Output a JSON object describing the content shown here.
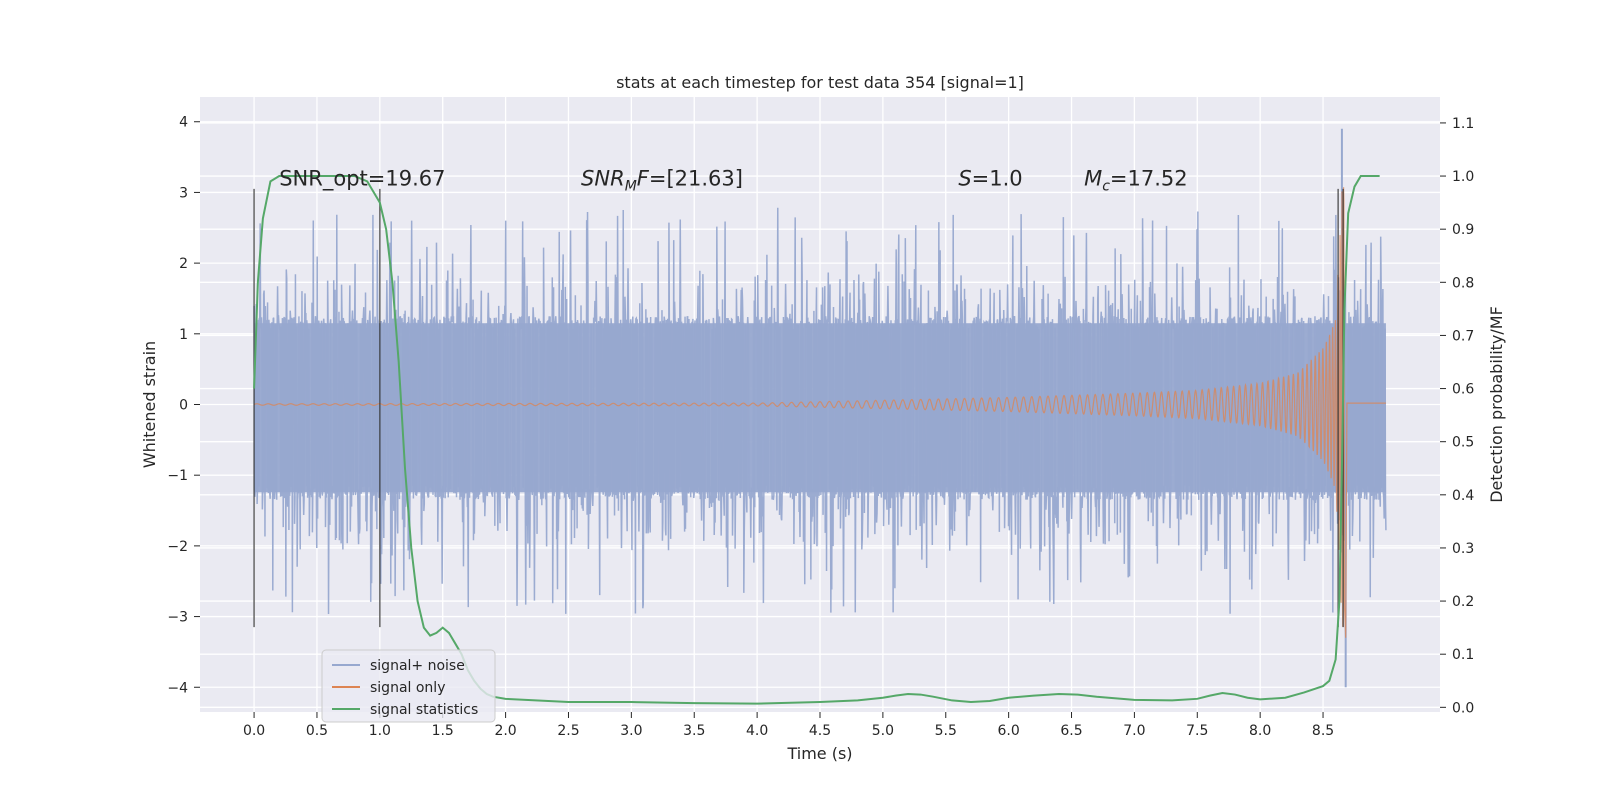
{
  "chart_data": {
    "type": "line",
    "title": "stats at each timestep for test data 354 [signal=1]",
    "xlabel": "Time (s)",
    "ylabel": "Whitened strain",
    "y2label": "Detection probability/MF",
    "xlim": [
      -0.43,
      9.43
    ],
    "ylim": [
      -4.35,
      4.35
    ],
    "y2lim": [
      -0.0088,
      1.1488
    ],
    "xticks": [
      0.0,
      0.5,
      1.0,
      1.5,
      2.0,
      2.5,
      3.0,
      3.5,
      4.0,
      4.5,
      5.0,
      5.5,
      6.0,
      6.5,
      7.0,
      7.5,
      8.0,
      8.5
    ],
    "xtick_labels": [
      "0.0",
      "0.5",
      "1.0",
      "1.5",
      "2.0",
      "2.5",
      "3.0",
      "3.5",
      "4.0",
      "4.5",
      "5.0",
      "5.5",
      "6.0",
      "6.5",
      "7.0",
      "7.5",
      "8.0",
      "8.5"
    ],
    "yticks": [
      -4,
      -3,
      -2,
      -1,
      0,
      1,
      2,
      3,
      4
    ],
    "ytick_labels": [
      "−4",
      "−3",
      "−2",
      "−1",
      "0",
      "1",
      "2",
      "3",
      "4"
    ],
    "y2ticks": [
      0.0,
      0.1,
      0.2,
      0.3,
      0.4,
      0.5,
      0.6,
      0.7,
      0.8,
      0.9,
      1.0,
      1.1
    ],
    "y2tick_labels": [
      "0.0",
      "0.1",
      "0.2",
      "0.3",
      "0.4",
      "0.5",
      "0.6",
      "0.7",
      "0.8",
      "0.9",
      "1.0",
      "1.1"
    ],
    "series": [
      {
        "name": "signal+ noise",
        "color": "#97a8cf",
        "axis": "left",
        "description": "whitened noisy strain, roughly uniform amplitude about ±1.3 with peaks to about ±2.8, spikes to 3.9 and −4.0 near 8.65 s",
        "t_start": 0.0,
        "t_end": 9.0,
        "band_min": -1.35,
        "band_max": 1.25,
        "peak_max": 2.8,
        "peak_min": -3.0,
        "spike_max": {
          "t": 8.65,
          "value": 3.9
        },
        "spike_min": {
          "t": 8.68,
          "value": -4.0
        }
      },
      {
        "name": "signal only",
        "color": "#dd8452",
        "axis": "left",
        "description": "chirp signal that grows in amplitude and frequency until merger near 8.67 s",
        "envelope_points": [
          [
            0.0,
            0.01
          ],
          [
            4.0,
            0.02
          ],
          [
            5.0,
            0.06
          ],
          [
            6.0,
            0.1
          ],
          [
            7.0,
            0.16
          ],
          [
            7.5,
            0.2
          ],
          [
            8.0,
            0.3
          ],
          [
            8.3,
            0.45
          ],
          [
            8.5,
            0.8
          ],
          [
            8.6,
            1.2
          ],
          [
            8.66,
            3.4
          ]
        ],
        "merger_time": 8.67,
        "t_end": 9.0
      },
      {
        "name": "signal statistics",
        "color": "#55a868",
        "axis": "right",
        "points": [
          [
            0.0,
            0.6
          ],
          [
            0.03,
            0.8
          ],
          [
            0.07,
            0.92
          ],
          [
            0.13,
            0.99
          ],
          [
            0.2,
            1.0
          ],
          [
            0.4,
            1.0
          ],
          [
            0.6,
            1.0
          ],
          [
            0.8,
            1.0
          ],
          [
            0.9,
            0.99
          ],
          [
            0.95,
            0.97
          ],
          [
            1.0,
            0.95
          ],
          [
            1.05,
            0.9
          ],
          [
            1.1,
            0.8
          ],
          [
            1.15,
            0.65
          ],
          [
            1.2,
            0.45
          ],
          [
            1.25,
            0.3
          ],
          [
            1.3,
            0.2
          ],
          [
            1.35,
            0.15
          ],
          [
            1.4,
            0.135
          ],
          [
            1.45,
            0.14
          ],
          [
            1.5,
            0.15
          ],
          [
            1.55,
            0.14
          ],
          [
            1.6,
            0.12
          ],
          [
            1.65,
            0.1
          ],
          [
            1.7,
            0.07
          ],
          [
            1.75,
            0.05
          ],
          [
            1.8,
            0.035
          ],
          [
            1.85,
            0.025
          ],
          [
            1.9,
            0.02
          ],
          [
            2.0,
            0.016
          ],
          [
            2.5,
            0.01
          ],
          [
            3.0,
            0.01
          ],
          [
            3.5,
            0.008
          ],
          [
            4.0,
            0.007
          ],
          [
            4.5,
            0.01
          ],
          [
            4.8,
            0.013
          ],
          [
            5.0,
            0.018
          ],
          [
            5.1,
            0.022
          ],
          [
            5.2,
            0.025
          ],
          [
            5.3,
            0.024
          ],
          [
            5.4,
            0.02
          ],
          [
            5.55,
            0.013
          ],
          [
            5.7,
            0.01
          ],
          [
            5.85,
            0.012
          ],
          [
            6.0,
            0.018
          ],
          [
            6.2,
            0.022
          ],
          [
            6.4,
            0.025
          ],
          [
            6.55,
            0.024
          ],
          [
            6.7,
            0.02
          ],
          [
            7.0,
            0.014
          ],
          [
            7.3,
            0.013
          ],
          [
            7.5,
            0.016
          ],
          [
            7.6,
            0.022
          ],
          [
            7.7,
            0.027
          ],
          [
            7.8,
            0.024
          ],
          [
            7.9,
            0.018
          ],
          [
            8.0,
            0.015
          ],
          [
            8.2,
            0.018
          ],
          [
            8.35,
            0.028
          ],
          [
            8.5,
            0.04
          ],
          [
            8.55,
            0.05
          ],
          [
            8.6,
            0.09
          ],
          [
            8.63,
            0.2
          ],
          [
            8.65,
            0.45
          ],
          [
            8.67,
            0.75
          ],
          [
            8.7,
            0.93
          ],
          [
            8.75,
            0.98
          ],
          [
            8.8,
            1.0
          ],
          [
            8.95,
            1.0
          ]
        ]
      }
    ],
    "vlines": [
      {
        "x": 0.0,
        "y_range": [
          -3.15,
          3.05
        ]
      },
      {
        "x": 1.0,
        "y_range": [
          -3.15,
          3.05
        ]
      },
      {
        "x": 8.62,
        "y_range": [
          -3.15,
          3.05
        ]
      },
      {
        "x": 8.66,
        "y_range": [
          -3.15,
          3.05
        ]
      }
    ],
    "annotations": [
      {
        "id": "snr_opt",
        "text": "SNR_opt=19.67",
        "x": 0.2,
        "y": 3.1
      },
      {
        "id": "snr_mf",
        "text": "SNR",
        "sub": "M",
        "rest": "F=[21.63]",
        "x": 2.6,
        "y": 3.1
      },
      {
        "id": "s",
        "italic": "S",
        "rest": "=1.0",
        "x": 5.6,
        "y": 3.1
      },
      {
        "id": "mc",
        "italic": "M",
        "sub": "c",
        "rest": "=17.52",
        "x": 6.6,
        "y": 3.1
      }
    ],
    "legend": {
      "position": "lower-left",
      "entries": [
        {
          "label": "signal+ noise",
          "color": "#97a8cf"
        },
        {
          "label": "signal only",
          "color": "#dd8452"
        },
        {
          "label": "signal statistics",
          "color": "#55a868"
        }
      ]
    },
    "grid": true,
    "background": "#eaeaf2"
  }
}
